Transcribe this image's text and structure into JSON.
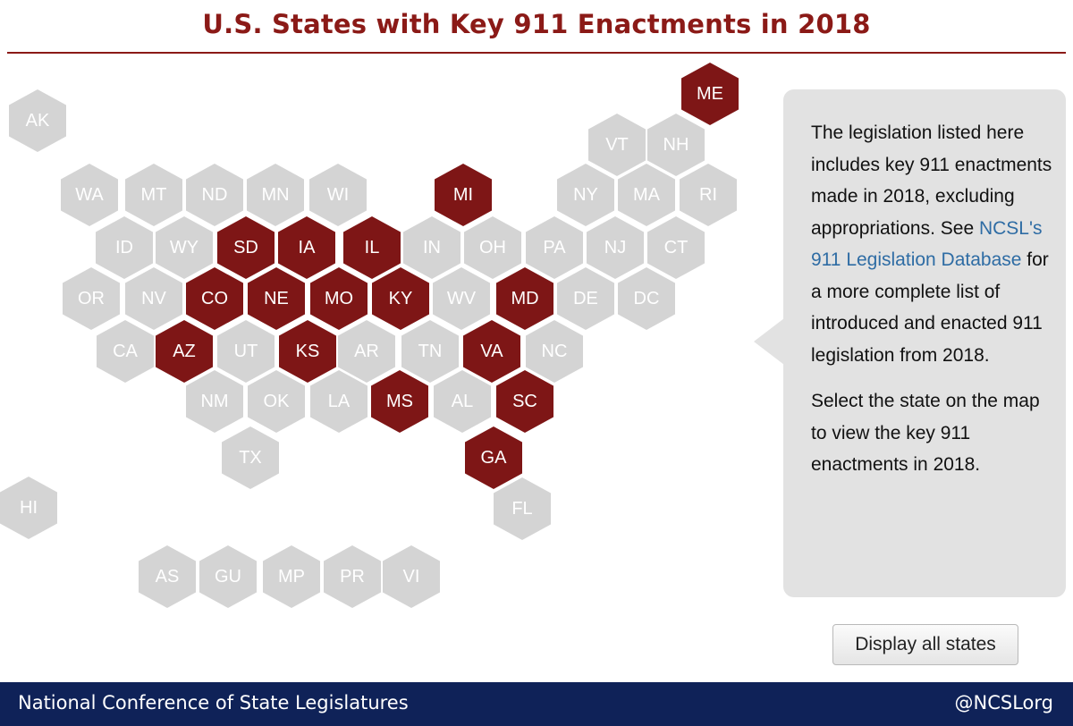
{
  "header": {
    "title": "U.S. States with Key 911 Enactments in 2018"
  },
  "colors": {
    "selected": "#7e1616",
    "unselected": "#d4d4d4",
    "title": "#8b1a17",
    "footer": "#0f2258"
  },
  "map": {
    "states": [
      {
        "abbr": "AK",
        "selected": false
      },
      {
        "abbr": "ME",
        "selected": true
      },
      {
        "abbr": "VT",
        "selected": false
      },
      {
        "abbr": "NH",
        "selected": false
      },
      {
        "abbr": "WA",
        "selected": false
      },
      {
        "abbr": "MT",
        "selected": false
      },
      {
        "abbr": "ND",
        "selected": false
      },
      {
        "abbr": "MN",
        "selected": false
      },
      {
        "abbr": "WI",
        "selected": false
      },
      {
        "abbr": "MI",
        "selected": true
      },
      {
        "abbr": "NY",
        "selected": false
      },
      {
        "abbr": "MA",
        "selected": false
      },
      {
        "abbr": "RI",
        "selected": false
      },
      {
        "abbr": "ID",
        "selected": false
      },
      {
        "abbr": "WY",
        "selected": false
      },
      {
        "abbr": "SD",
        "selected": true
      },
      {
        "abbr": "IA",
        "selected": true
      },
      {
        "abbr": "IL",
        "selected": true
      },
      {
        "abbr": "IN",
        "selected": false
      },
      {
        "abbr": "OH",
        "selected": false
      },
      {
        "abbr": "PA",
        "selected": false
      },
      {
        "abbr": "NJ",
        "selected": false
      },
      {
        "abbr": "CT",
        "selected": false
      },
      {
        "abbr": "OR",
        "selected": false
      },
      {
        "abbr": "NV",
        "selected": false
      },
      {
        "abbr": "CO",
        "selected": true
      },
      {
        "abbr": "NE",
        "selected": true
      },
      {
        "abbr": "MO",
        "selected": true
      },
      {
        "abbr": "KY",
        "selected": true
      },
      {
        "abbr": "WV",
        "selected": false
      },
      {
        "abbr": "MD",
        "selected": true
      },
      {
        "abbr": "DE",
        "selected": false
      },
      {
        "abbr": "DC",
        "selected": false
      },
      {
        "abbr": "CA",
        "selected": false
      },
      {
        "abbr": "AZ",
        "selected": true
      },
      {
        "abbr": "UT",
        "selected": false
      },
      {
        "abbr": "KS",
        "selected": true
      },
      {
        "abbr": "AR",
        "selected": false
      },
      {
        "abbr": "TN",
        "selected": false
      },
      {
        "abbr": "VA",
        "selected": true
      },
      {
        "abbr": "NC",
        "selected": false
      },
      {
        "abbr": "NM",
        "selected": false
      },
      {
        "abbr": "OK",
        "selected": false
      },
      {
        "abbr": "LA",
        "selected": false
      },
      {
        "abbr": "MS",
        "selected": true
      },
      {
        "abbr": "AL",
        "selected": false
      },
      {
        "abbr": "SC",
        "selected": true
      },
      {
        "abbr": "TX",
        "selected": false
      },
      {
        "abbr": "GA",
        "selected": true
      },
      {
        "abbr": "HI",
        "selected": false
      },
      {
        "abbr": "FL",
        "selected": false
      },
      {
        "abbr": "AS",
        "selected": false
      },
      {
        "abbr": "GU",
        "selected": false
      },
      {
        "abbr": "MP",
        "selected": false
      },
      {
        "abbr": "PR",
        "selected": false
      },
      {
        "abbr": "VI",
        "selected": false
      }
    ]
  },
  "info_panel": {
    "text_before_link": "The legislation listed here includes key 911 enactments made in 2018, excluding appropriations. See ",
    "link_text": "NCSL's 911 Legislation Database",
    "text_after_link": " for a more complete list of introduced and enacted 911 legislation from 2018.",
    "instruction": "Select the state on the map to view the key 911 enactments in 2018."
  },
  "controls": {
    "display_all_label": "Display all states"
  },
  "footer": {
    "org": "National Conference of State Legislatures",
    "handle": "@NCSLorg"
  }
}
